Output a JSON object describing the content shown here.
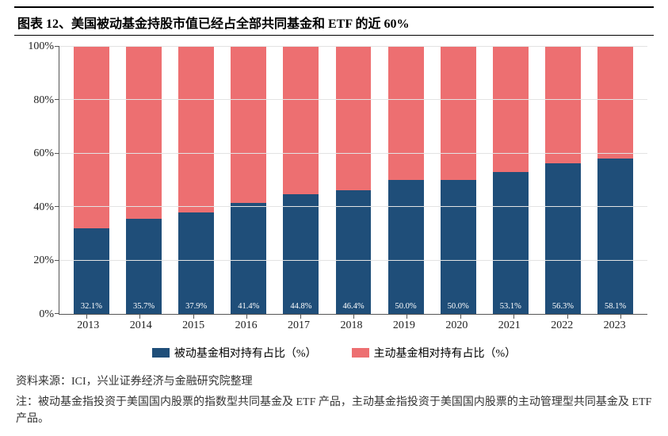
{
  "title": "图表 12、美国被动基金持股市值已经占全部共同基金和 ETF 的近 60%",
  "chart": {
    "type": "stacked_bar_100pct",
    "y": {
      "min": 0,
      "max": 100,
      "step": 20,
      "suffix": "%"
    },
    "categories": [
      "2013",
      "2014",
      "2015",
      "2016",
      "2017",
      "2018",
      "2019",
      "2020",
      "2021",
      "2022",
      "2023"
    ],
    "series": [
      {
        "name": "被动基金相对持有占比（%）",
        "color": "#1f4e79",
        "values": [
          32.1,
          35.7,
          37.9,
          41.4,
          44.8,
          46.4,
          50.0,
          50.0,
          53.1,
          56.3,
          58.1
        ],
        "labels": [
          "32.1%",
          "35.7%",
          "37.9%",
          "41.4%",
          "44.8%",
          "46.4%",
          "50.0%",
          "50.0%",
          "53.1%",
          "56.3%",
          "58.1%"
        ]
      },
      {
        "name": "主动基金相对持有占比（%）",
        "color": "#ed6f71",
        "values": [
          67.9,
          64.3,
          62.1,
          58.6,
          55.2,
          53.6,
          50.0,
          50.0,
          46.9,
          43.7,
          41.9
        ],
        "labels": null
      }
    ],
    "grid_color": "#e3e3e3",
    "axis_color": "#555555",
    "label_color": "#ffffff",
    "label_fontsize": 10.5,
    "bar_width_pct": 68
  },
  "legend": {
    "items": [
      {
        "swatch": "#1f4e79",
        "text": "被动基金相对持有占比（%）"
      },
      {
        "swatch": "#ed6f71",
        "text": "主动基金相对持有占比（%）"
      }
    ]
  },
  "source": "资料来源：ICI，兴业证券经济与金融研究院整理",
  "note": "注：被动基金指投资于美国国内股票的指数型共同基金及 ETF 产品，主动基金指投资于美国国内股票的主动管理型共同基金及 ETF 产品。"
}
